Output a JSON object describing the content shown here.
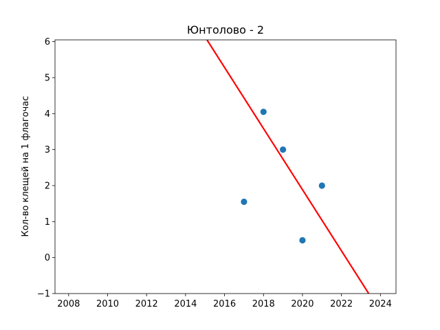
{
  "chart_data": {
    "type": "scatter",
    "title": "Юнтолово - 2",
    "xlabel": "",
    "ylabel": "Кол-во клещей на 1 флагочас",
    "xlim": [
      2007.3,
      2024.8
    ],
    "ylim": [
      -1,
      6.05
    ],
    "xticks": [
      2008,
      2010,
      2012,
      2014,
      2016,
      2018,
      2020,
      2022,
      2024
    ],
    "yticks": [
      -1,
      0,
      1,
      2,
      3,
      4,
      5,
      6
    ],
    "grid": false,
    "points": [
      {
        "x": 2017,
        "y": 1.55
      },
      {
        "x": 2018,
        "y": 4.05
      },
      {
        "x": 2019,
        "y": 3.0
      },
      {
        "x": 2020,
        "y": 0.48
      },
      {
        "x": 2021,
        "y": 2.0
      }
    ],
    "trendline": {
      "x": [
        2015.1,
        2023.4
      ],
      "y": [
        6.05,
        -1.0
      ]
    },
    "colors": {
      "points": "#1f77b4",
      "trendline": "#ff0000"
    }
  }
}
